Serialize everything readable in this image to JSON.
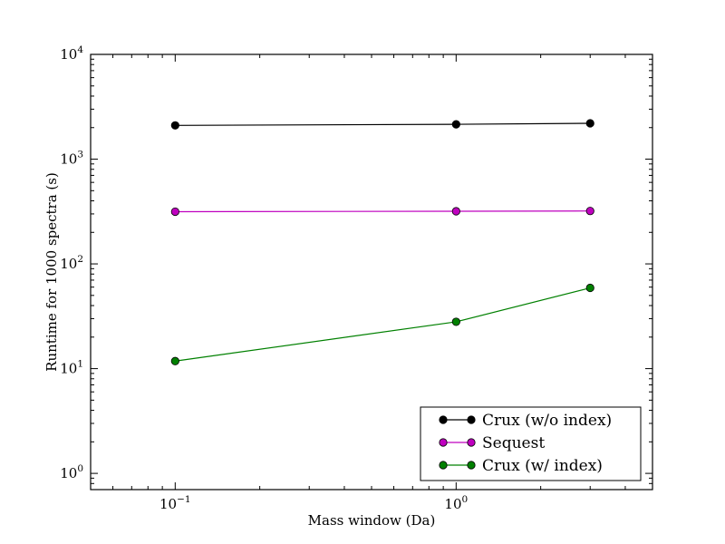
{
  "chart_data": {
    "type": "line",
    "title": "",
    "xlabel": "Mass window (Da)",
    "ylabel": "Runtime for 1000 spectra (s)",
    "xscale": "log",
    "yscale": "log",
    "xlim": [
      0.05,
      5
    ],
    "ylim": [
      0.7,
      10000
    ],
    "x_ticks": [
      {
        "value": 0.1,
        "base": "10",
        "exp": "−1"
      },
      {
        "value": 1,
        "base": "10",
        "exp": "0"
      }
    ],
    "y_ticks": [
      {
        "value": 1,
        "base": "10",
        "exp": "0"
      },
      {
        "value": 10,
        "base": "10",
        "exp": "1"
      },
      {
        "value": 100,
        "base": "10",
        "exp": "2"
      },
      {
        "value": 1000,
        "base": "10",
        "exp": "3"
      },
      {
        "value": 10000,
        "base": "10",
        "exp": "4"
      }
    ],
    "x": [
      0.1,
      1,
      3
    ],
    "series": [
      {
        "name": "Crux (w/o index)",
        "color": "#000000",
        "values": [
          2100,
          2150,
          2200
        ]
      },
      {
        "name": "Sequest",
        "color": "#bf00bf",
        "values": [
          315,
          318,
          320
        ]
      },
      {
        "name": "Crux (w/ index)",
        "color": "#008000",
        "values": [
          11.8,
          28,
          59
        ]
      }
    ],
    "legend_placement": "lower-right",
    "grid": false
  }
}
